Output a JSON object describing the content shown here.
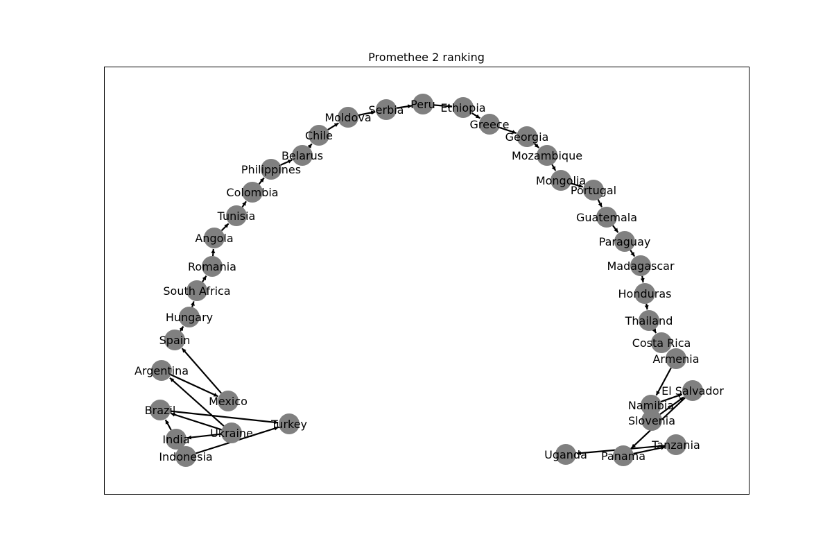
{
  "title": "Promethee 2 ranking",
  "colors": {
    "node": "#808080",
    "edge": "#000000",
    "frame": "#000000",
    "background": "#ffffff"
  },
  "nodes": [
    "Peru",
    "Serbia",
    "Ethiopia",
    "Moldova",
    "Greece",
    "Chile",
    "Georgia",
    "Belarus",
    "Mozambique",
    "Philippines",
    "Mongolia",
    "Colombia",
    "Portugal",
    "Tunisia",
    "Guatemala",
    "Angola",
    "Paraguay",
    "Romania",
    "Madagascar",
    "South Africa",
    "Honduras",
    "Hungary",
    "Thailand",
    "Spain",
    "Costa Rica",
    "Armenia",
    "Argentina",
    "El Salvador",
    "Mexico",
    "Namibia",
    "Brazil",
    "Slovenia",
    "Turkey",
    "Ukraine",
    "India",
    "Tanzania",
    "Uganda",
    "Panama",
    "Indonesia"
  ],
  "edges": [
    [
      "Serbia",
      "Peru"
    ],
    [
      "Moldova",
      "Serbia"
    ],
    [
      "Chile",
      "Moldova"
    ],
    [
      "Belarus",
      "Chile"
    ],
    [
      "Philippines",
      "Belarus"
    ],
    [
      "Colombia",
      "Philippines"
    ],
    [
      "Tunisia",
      "Colombia"
    ],
    [
      "Angola",
      "Tunisia"
    ],
    [
      "Romania",
      "Angola"
    ],
    [
      "South Africa",
      "Romania"
    ],
    [
      "Hungary",
      "South Africa"
    ],
    [
      "Spain",
      "Hungary"
    ],
    [
      "Mexico",
      "Spain"
    ],
    [
      "Argentina",
      "Mexico"
    ],
    [
      "Ukraine",
      "Argentina"
    ],
    [
      "Ukraine",
      "Brazil"
    ],
    [
      "Ukraine",
      "India"
    ],
    [
      "Brazil",
      "Turkey"
    ],
    [
      "India",
      "Brazil"
    ],
    [
      "Indonesia",
      "Turkey"
    ],
    [
      "Peru",
      "Ethiopia"
    ],
    [
      "Ethiopia",
      "Greece"
    ],
    [
      "Greece",
      "Georgia"
    ],
    [
      "Georgia",
      "Mozambique"
    ],
    [
      "Mozambique",
      "Mongolia"
    ],
    [
      "Mongolia",
      "Portugal"
    ],
    [
      "Portugal",
      "Guatemala"
    ],
    [
      "Guatemala",
      "Paraguay"
    ],
    [
      "Paraguay",
      "Madagascar"
    ],
    [
      "Madagascar",
      "Honduras"
    ],
    [
      "Honduras",
      "Thailand"
    ],
    [
      "Thailand",
      "Costa Rica"
    ],
    [
      "Armenia",
      "Namibia"
    ],
    [
      "Namibia",
      "El Salvador"
    ],
    [
      "Slovenia",
      "El Salvador"
    ],
    [
      "El Salvador",
      "Panama"
    ],
    [
      "Panama",
      "Tanzania"
    ],
    [
      "Tanzania",
      "Uganda"
    ]
  ]
}
